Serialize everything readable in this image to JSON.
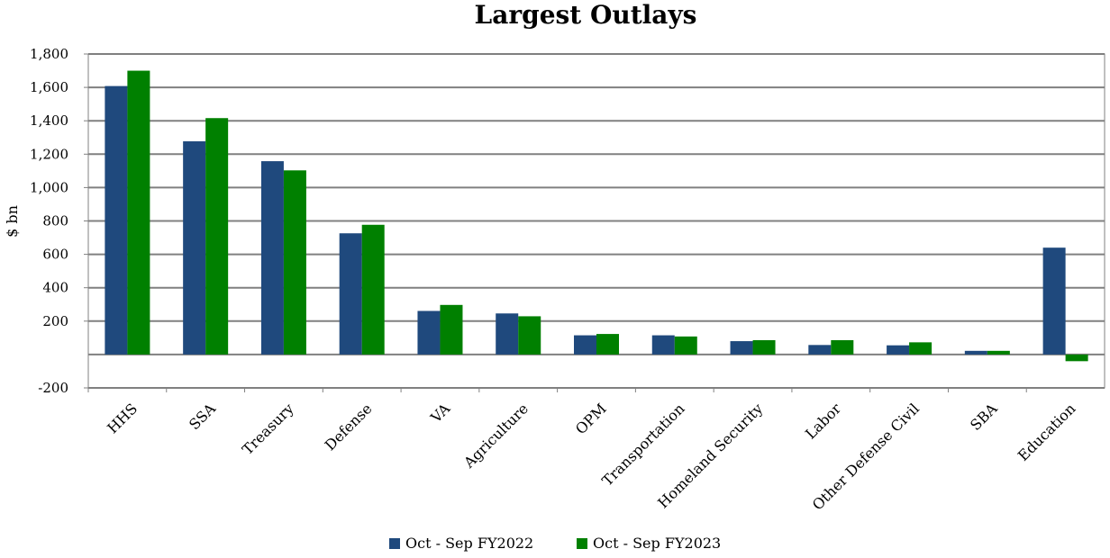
{
  "chart_data": {
    "type": "bar",
    "title": "Largest Outlays",
    "ylabel": "$ bn",
    "xlabel": "",
    "ylim": [
      -200,
      1800
    ],
    "yticks": [
      -200,
      200,
      400,
      600,
      800,
      1000,
      1200,
      1400,
      1600,
      1800
    ],
    "ytick_labels": [
      "-200",
      "200",
      "400",
      "600",
      "800",
      "1,000",
      "1,200",
      "1,400",
      "1,600",
      "1,800"
    ],
    "grid": true,
    "legend_position": "bottom",
    "categories": [
      "HHS",
      "SSA",
      "Treasury",
      "Defense",
      "VA",
      "Agriculture",
      "OPM",
      "Transportation",
      "Homeland Security",
      "Labor",
      "Other Defense Civil",
      "SBA",
      "Education"
    ],
    "series": [
      {
        "name": "Oct - Sep FY2022",
        "color": "#1f497d",
        "values": [
          1608,
          1277,
          1158,
          726,
          261,
          246,
          115,
          115,
          80,
          57,
          55,
          22,
          640
        ]
      },
      {
        "name": "Oct - Sep FY2023",
        "color": "#008000",
        "values": [
          1700,
          1416,
          1103,
          777,
          297,
          229,
          123,
          108,
          86,
          86,
          73,
          22,
          -40
        ]
      }
    ]
  }
}
